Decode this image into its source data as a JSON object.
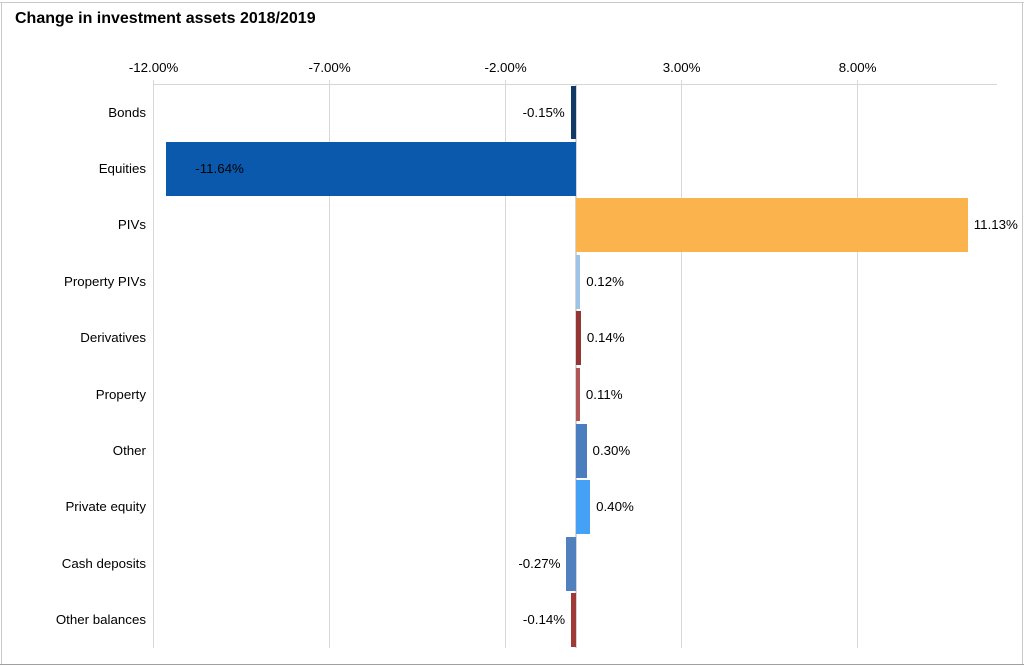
{
  "chart_data": {
    "type": "bar",
    "orientation": "horizontal",
    "title": "Change in investment assets 2018/2019",
    "categories": [
      "Bonds",
      "Equities",
      "PIVs",
      "Property PIVs",
      "Derivatives",
      "Property",
      "Other",
      "Private equity",
      "Cash deposits",
      "Other balances"
    ],
    "values": [
      -0.15,
      -11.64,
      11.13,
      0.12,
      0.14,
      0.11,
      0.3,
      0.4,
      -0.27,
      -0.14
    ],
    "data_labels": [
      "-0.15%",
      "-11.64%",
      "11.13%",
      "0.12%",
      "0.14%",
      "0.11%",
      "0.30%",
      "0.40%",
      "-0.27%",
      "-0.14%"
    ],
    "data_label_placement": [
      "outside",
      "inside",
      "outside",
      "outside",
      "outside",
      "outside",
      "outside",
      "outside",
      "outside",
      "outside"
    ],
    "bar_colors": [
      "#123A66",
      "#0B59AC",
      "#FAB34D",
      "#9DC3E6",
      "#943634",
      "#AE5754",
      "#4A7EBE",
      "#45A1F6",
      "#5081BE",
      "#A03A37"
    ],
    "xlabel": "",
    "ylabel": "",
    "axis": {
      "position": "top",
      "min": -12,
      "max": 11.95,
      "tick_values": [
        -12,
        -7,
        -2,
        3,
        8
      ],
      "tick_labels": [
        "-12.00%",
        "-7.00%",
        "-2.00%",
        "3.00%",
        "8.00%"
      ],
      "unit": "percent"
    },
    "gridlines": true,
    "legend": false
  },
  "style": {
    "background": "#FFFFFF",
    "title_color": "#000000",
    "label_color": "#000000",
    "gridline_color": "#D8D8D8",
    "axis_line_color": "#D6D6D6",
    "frame_color": "#C9C9C9",
    "frame_bottom_color": "#A0A0A0"
  }
}
